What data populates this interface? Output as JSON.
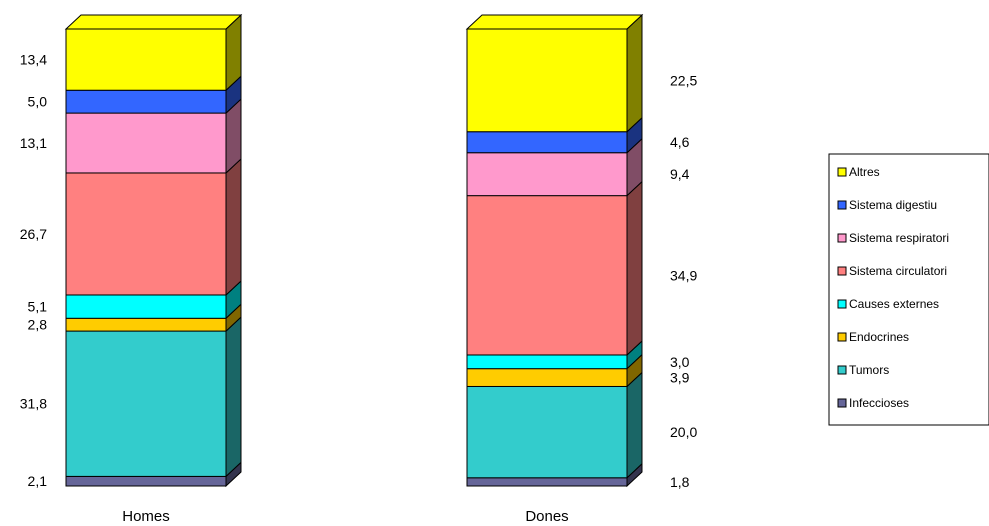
{
  "chart_data": {
    "type": "bar",
    "stacked": true,
    "percent_stacked": true,
    "three_d": true,
    "categories": [
      "Homes",
      "Dones"
    ],
    "series": [
      {
        "name": "Infeccioses",
        "color": "#666699",
        "values": [
          2.1,
          1.8
        ]
      },
      {
        "name": "Tumors",
        "color": "#33CCCC",
        "values": [
          31.8,
          20.0
        ]
      },
      {
        "name": "Endocrines",
        "color": "#FFCC00",
        "values": [
          2.8,
          3.9
        ]
      },
      {
        "name": "Causes externes",
        "color": "#00FFFF",
        "values": [
          5.1,
          3.0
        ]
      },
      {
        "name": "Sistema circulatori",
        "color": "#FF8080",
        "values": [
          26.7,
          34.9
        ]
      },
      {
        "name": "Sistema respiratori",
        "color": "#FF99CC",
        "values": [
          13.1,
          9.4
        ]
      },
      {
        "name": "Sistema digestiu",
        "color": "#3366FF",
        "values": [
          5.0,
          4.6
        ]
      },
      {
        "name": "Altres",
        "color": "#FFFF00",
        "values": [
          13.4,
          22.5
        ]
      }
    ],
    "value_labels": [
      [
        "2,1",
        "31,8",
        "2,8",
        "5,1",
        "26,7",
        "13,1",
        "5,0",
        "13,4"
      ],
      [
        "1,8",
        "20,0",
        "3,9",
        "3,0",
        "34,9",
        "9,4",
        "4,6",
        "22,5"
      ]
    ],
    "label_side": [
      "left",
      "right"
    ],
    "legend": {
      "position": "right",
      "order": [
        "Altres",
        "Sistema digestiu",
        "Sistema respiratori",
        "Sistema circulatori",
        "Causes externes",
        "Endocrines",
        "Tumors",
        "Infeccioses"
      ]
    },
    "title": "",
    "xlabel": "",
    "ylabel": "",
    "grid": false
  }
}
